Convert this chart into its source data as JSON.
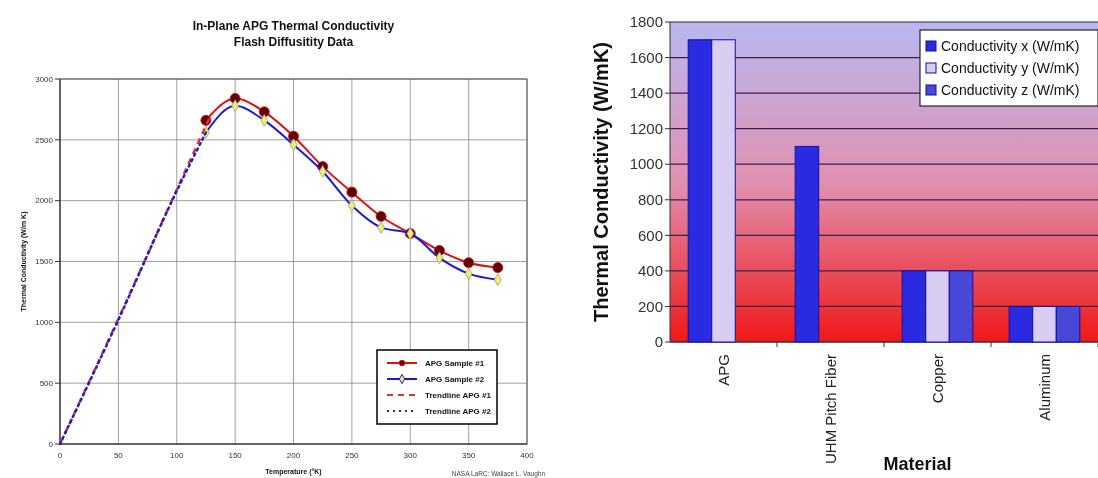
{
  "chart_data": [
    {
      "type": "line",
      "title": "In-Plane APG Thermal Conductivity\nFlash Diffusitity Data",
      "xlabel": "Temperature (°K)",
      "ylabel": "Thermal Conductivity (W/m K)",
      "annotations": [
        "NASA LaRC: Wallace L. Vaughn"
      ],
      "xlim": [
        0,
        400
      ],
      "xticks": [
        0,
        50,
        100,
        150,
        200,
        250,
        300,
        350,
        400
      ],
      "ylim": [
        0,
        3000
      ],
      "yticks": [
        0,
        500,
        1000,
        1500,
        2000,
        2500,
        3000
      ],
      "grid": true,
      "legend": "bottom right",
      "series": [
        {
          "name": "APG Sample #1",
          "color": "#e01010",
          "marker": "circle",
          "line_style": "solid",
          "x": [
            125,
            150,
            175,
            200,
            225,
            250,
            275,
            300,
            325,
            350,
            375
          ],
          "values": [
            2660,
            2840,
            2730,
            2530,
            2280,
            2070,
            1870,
            1730,
            1590,
            1490,
            1450
          ]
        },
        {
          "name": "APG Sample #2",
          "color": "#1a1ad0",
          "marker": "diamond",
          "line_style": "solid",
          "x": [
            125,
            150,
            175,
            200,
            225,
            250,
            275,
            300,
            325,
            350,
            375
          ],
          "values": [
            2560,
            2780,
            2660,
            2460,
            2240,
            1960,
            1780,
            1730,
            1530,
            1400,
            1350
          ]
        },
        {
          "name": "Trendline APG #1",
          "color": "#e03030",
          "marker": "none",
          "line_style": "dashed",
          "x": [
            0,
            50,
            100,
            130
          ],
          "values": [
            0,
            1030,
            2090,
            2720
          ]
        },
        {
          "name": "Trendline APG #2",
          "color": "#2020c0",
          "marker": "none",
          "line_style": "dotted",
          "x": [
            0,
            50,
            100,
            125
          ],
          "values": [
            0,
            1020,
            2080,
            2560
          ]
        }
      ]
    },
    {
      "type": "bar",
      "xlabel": "Material",
      "ylabel": "Thermal Conductivity (W/mK)",
      "categories": [
        "APG",
        "UHM Pitch Fiber",
        "Copper",
        "Aluminum"
      ],
      "ylim": [
        0,
        1800
      ],
      "yticks": [
        0,
        200,
        400,
        600,
        800,
        1000,
        1200,
        1400,
        1600,
        1800
      ],
      "grid": "y",
      "legend": "top right",
      "series": [
        {
          "name": "Conductivity x (W/mK)",
          "color": "#2a2ae0",
          "values": [
            1700,
            1100,
            400,
            200
          ]
        },
        {
          "name": "Conductivity y (W/mK)",
          "color": "#d8ccf0",
          "values": [
            1700,
            null,
            400,
            200
          ]
        },
        {
          "name": "Conductivity z (W/mK)",
          "color": "#4848d8",
          "values": [
            null,
            null,
            400,
            200
          ]
        }
      ]
    }
  ]
}
